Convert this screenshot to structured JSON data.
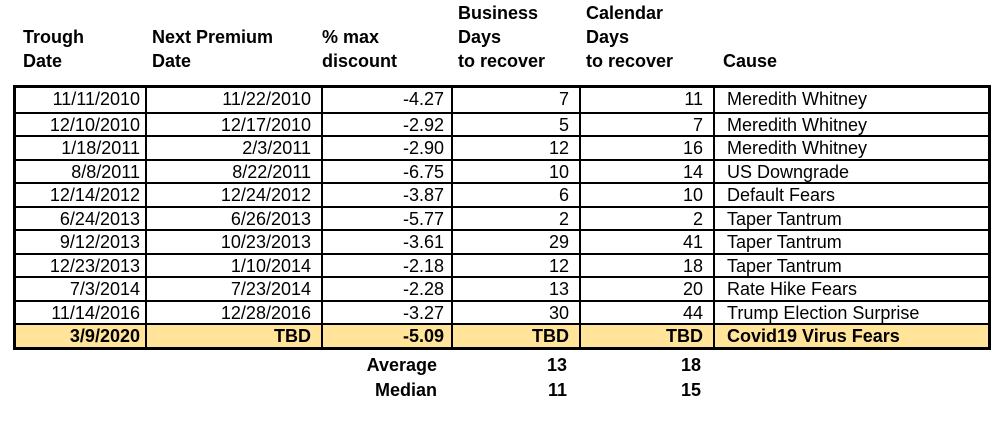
{
  "table": {
    "highlight_color": "#FFE49A",
    "headers": [
      {
        "lines": [
          "Trough",
          "Date"
        ]
      },
      {
        "lines": [
          "Next Premium",
          "Date"
        ]
      },
      {
        "lines": [
          "% max",
          "discount"
        ]
      },
      {
        "lines": [
          "Business",
          "Days",
          "to recover"
        ]
      },
      {
        "lines": [
          "Calendar",
          "Days",
          "to recover"
        ]
      },
      {
        "lines": [
          "Cause"
        ]
      }
    ],
    "rows": [
      {
        "trough_date": "11/11/2010",
        "next_premium_date": "11/22/2010",
        "pct_max_discount": "-4.27",
        "business_days": "7",
        "calendar_days": "11",
        "cause": "Meredith Whitney",
        "highlight": false
      },
      {
        "trough_date": "12/10/2010",
        "next_premium_date": "12/17/2010",
        "pct_max_discount": "-2.92",
        "business_days": "5",
        "calendar_days": "7",
        "cause": "Meredith Whitney",
        "highlight": false
      },
      {
        "trough_date": "1/18/2011",
        "next_premium_date": "2/3/2011",
        "pct_max_discount": "-2.90",
        "business_days": "12",
        "calendar_days": "16",
        "cause": "Meredith Whitney",
        "highlight": false
      },
      {
        "trough_date": "8/8/2011",
        "next_premium_date": "8/22/2011",
        "pct_max_discount": "-6.75",
        "business_days": "10",
        "calendar_days": "14",
        "cause": "US Downgrade",
        "highlight": false
      },
      {
        "trough_date": "12/14/2012",
        "next_premium_date": "12/24/2012",
        "pct_max_discount": "-3.87",
        "business_days": "6",
        "calendar_days": "10",
        "cause": "Default Fears",
        "highlight": false
      },
      {
        "trough_date": "6/24/2013",
        "next_premium_date": "6/26/2013",
        "pct_max_discount": "-5.77",
        "business_days": "2",
        "calendar_days": "2",
        "cause": "Taper Tantrum",
        "highlight": false
      },
      {
        "trough_date": "9/12/2013",
        "next_premium_date": "10/23/2013",
        "pct_max_discount": "-3.61",
        "business_days": "29",
        "calendar_days": "41",
        "cause": "Taper Tantrum",
        "highlight": false
      },
      {
        "trough_date": "12/23/2013",
        "next_premium_date": "1/10/2014",
        "pct_max_discount": "-2.18",
        "business_days": "12",
        "calendar_days": "18",
        "cause": "Taper Tantrum",
        "highlight": false
      },
      {
        "trough_date": "7/3/2014",
        "next_premium_date": "7/23/2014",
        "pct_max_discount": "-2.28",
        "business_days": "13",
        "calendar_days": "20",
        "cause": "Rate Hike Fears",
        "highlight": false
      },
      {
        "trough_date": "11/14/2016",
        "next_premium_date": "12/28/2016",
        "pct_max_discount": "-3.27",
        "business_days": "30",
        "calendar_days": "44",
        "cause": "Trump Election Surprise",
        "highlight": false
      },
      {
        "trough_date": "3/9/2020",
        "next_premium_date": "TBD",
        "pct_max_discount": "-5.09",
        "business_days": "TBD",
        "calendar_days": "TBD",
        "cause": "Covid19 Virus Fears",
        "highlight": true
      }
    ],
    "summary": [
      {
        "label": "Average",
        "business_days": "13",
        "calendar_days": "18"
      },
      {
        "label": "Median",
        "business_days": "11",
        "calendar_days": "15"
      }
    ]
  }
}
